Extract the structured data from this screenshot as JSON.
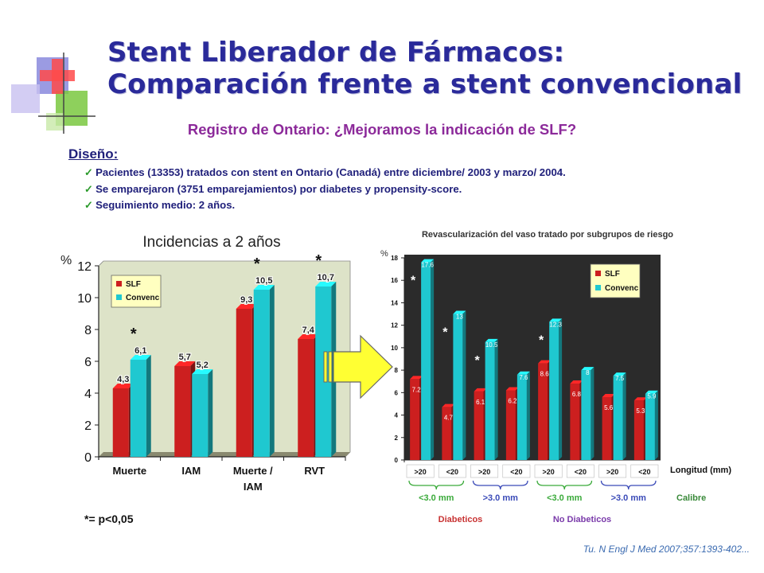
{
  "title": {
    "line1": "Stent Liberador de Fármacos:",
    "line2": "Comparación frente a stent convencional",
    "subtitle": "Registro de Ontario: ¿Mejoramos la indicación de SLF?"
  },
  "design": {
    "label": "Diseño:",
    "bullets": [
      "Pacientes (13353) tratados con stent en Ontario (Canadá) entre diciembre/ 2003 y marzo/ 2004.",
      "Se emparejaron (3751 emparejamientos) por diabetes y propensity-score.",
      "Seguimiento medio: 2 años."
    ]
  },
  "footnote": "*= p<0,05",
  "citation": "Tu. N Engl J Med 2007;357:1393-402...",
  "colors": {
    "slf": "#cc1f1f",
    "convenc": "#1fc8d0",
    "title": "#2a2a9a",
    "subtitle": "#8c2a9a",
    "plot_bg": "#dde3c8",
    "plot_bg_right": "#2b2b2b",
    "arrow": "#ffff33",
    "group_blue": "#3a4ab8",
    "group_green": "#3aaa3a",
    "diabeticos": "#c83232",
    "no_diabeticos": "#7a3aaa"
  },
  "chart_data": [
    {
      "type": "bar",
      "title": "Incidencias a 2 años",
      "ylabel": "%",
      "ylim": [
        0,
        12
      ],
      "yticks": [
        0,
        2,
        4,
        6,
        8,
        10,
        12
      ],
      "grid": false,
      "legend_placement": "top-left",
      "categories": [
        "Muerte",
        "IAM",
        "Muerte / IAM",
        "RVT"
      ],
      "series": [
        {
          "name": "SLF",
          "values": [
            4.3,
            5.7,
            9.3,
            7.4
          ],
          "labels": [
            "4,3",
            "5,7",
            "9,3",
            "7,4"
          ]
        },
        {
          "name": "Convenc",
          "values": [
            6.1,
            5.2,
            10.5,
            10.7
          ],
          "labels": [
            "6,1",
            "5,2",
            "10,5",
            "10,7"
          ]
        }
      ],
      "significant": [
        true,
        false,
        true,
        true
      ]
    },
    {
      "type": "bar",
      "title": "Revascularización del vaso tratado por subgrupos de riesgo",
      "ylabel": "%",
      "ylim": [
        0,
        18
      ],
      "yticks": [
        0,
        2,
        4,
        6,
        8,
        10,
        12,
        14,
        16,
        18
      ],
      "grid": false,
      "legend_placement": "top-right",
      "categories": [
        ">20",
        "<20",
        ">20",
        "<20",
        ">20",
        "<20",
        ">20",
        "<20"
      ],
      "series": [
        {
          "name": "SLF",
          "values": [
            7.2,
            4.7,
            6.1,
            6.2,
            8.6,
            6.8,
            5.6,
            5.3
          ],
          "labels": [
            "7.2",
            "4.7",
            "6.1",
            "6.2",
            "8.6",
            "6.8",
            "5.6",
            "5.3"
          ]
        },
        {
          "name": "Convenc",
          "values": [
            17.6,
            13,
            10.5,
            7.6,
            12.3,
            8,
            7.5,
            5.9
          ],
          "labels": [
            "17.6",
            "13",
            "10.5",
            "7.6",
            "12.3",
            "8",
            "7.5",
            "5.9"
          ]
        }
      ],
      "significant": [
        true,
        true,
        true,
        false,
        true,
        false,
        false,
        false
      ],
      "xlabel_length": "Longitud (mm)",
      "xlabel_calibre": "Calibre",
      "calibre_groups": [
        "<3.0 mm",
        ">3.0 mm",
        "<3.0 mm",
        ">3.0 mm"
      ],
      "diabetes_groups": [
        "Diabeticos",
        "No Diabeticos"
      ]
    }
  ]
}
